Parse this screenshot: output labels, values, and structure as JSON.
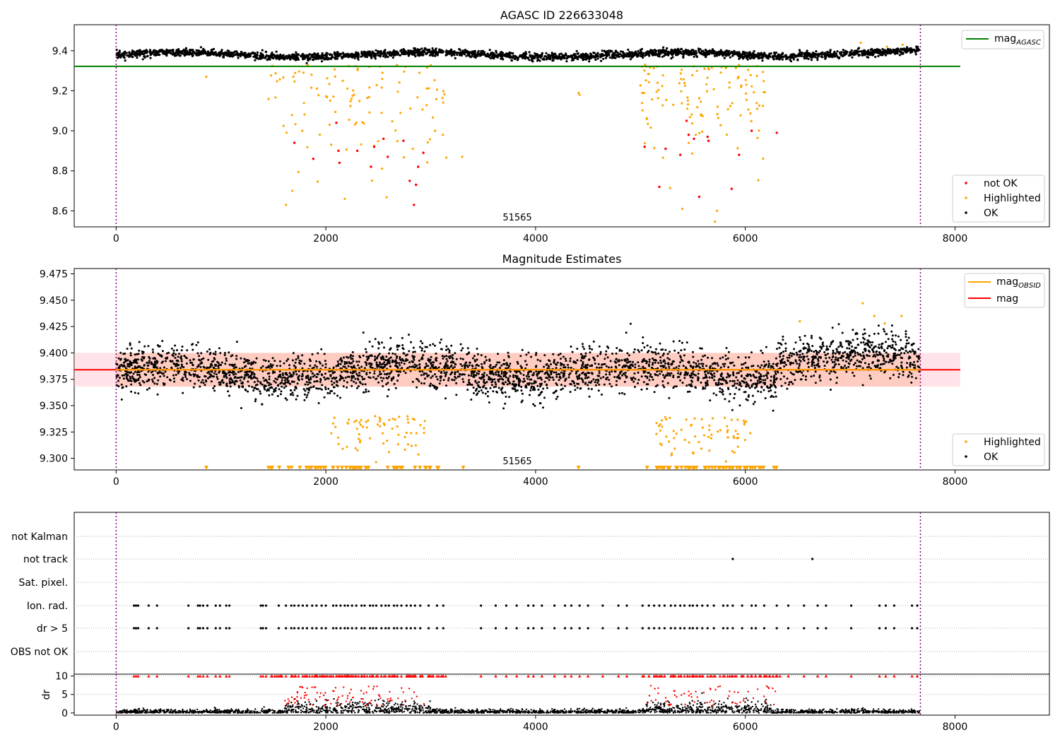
{
  "chart_data": [
    {
      "type": "scatter",
      "title": "AGASC ID 226633048",
      "xlabel": "",
      "ylabel": "",
      "xlim": [
        -400,
        8900
      ],
      "ylim": [
        8.52,
        9.53
      ],
      "xticks": [
        0,
        2000,
        4000,
        6000,
        8000
      ],
      "yticks": [
        8.6,
        8.8,
        9.0,
        9.2,
        9.4
      ],
      "yticklabels": [
        "8.6",
        "8.8",
        "9.0",
        "9.2",
        "9.4"
      ],
      "obsid_label": "51565",
      "obsid_boundaries": [
        0,
        7670
      ],
      "baseline": 9.4,
      "band_halfwidth": 0.02,
      "lines": [
        {
          "name": "mag_AGASC",
          "legend": "mag",
          "legend_sub": "AGASC",
          "y": 9.322,
          "x": [
            -400,
            8050
          ],
          "color": "#008000"
        }
      ],
      "series": [
        {
          "name": "not OK",
          "color": "#ff0000",
          "points": [
            [
              1700,
              8.94
            ],
            [
              1880,
              8.86
            ],
            [
              2100,
              9.04
            ],
            [
              2130,
              8.84
            ],
            [
              2120,
              8.9
            ],
            [
              2300,
              8.9
            ],
            [
              2430,
              8.82
            ],
            [
              2460,
              8.92
            ],
            [
              2550,
              8.96
            ],
            [
              2590,
              8.87
            ],
            [
              2740,
              8.95
            ],
            [
              2800,
              8.75
            ],
            [
              2840,
              8.63
            ],
            [
              2860,
              8.73
            ],
            [
              2880,
              8.82
            ],
            [
              2930,
              8.89
            ],
            [
              5040,
              8.92
            ],
            [
              5180,
              8.72
            ],
            [
              5240,
              8.91
            ],
            [
              5380,
              8.88
            ],
            [
              5440,
              9.05
            ],
            [
              5460,
              8.98
            ],
            [
              5510,
              8.96
            ],
            [
              5560,
              8.67
            ],
            [
              5640,
              8.97
            ],
            [
              5650,
              8.95
            ],
            [
              5870,
              8.71
            ],
            [
              5940,
              8.88
            ],
            [
              6060,
              9.0
            ],
            [
              6300,
              8.99
            ]
          ]
        },
        {
          "name": "Highlighted",
          "color": "#ffa500",
          "groups": [
            [
              1450,
              3150,
              110
            ],
            [
              5000,
              6200,
              120
            ]
          ],
          "extra": [
            [
              860,
              9.27
            ],
            [
              1620,
              8.63
            ],
            [
              1680,
              8.7
            ],
            [
              2180,
              8.66
            ],
            [
              3300,
              8.87
            ],
            [
              4410,
              9.19
            ],
            [
              4420,
              9.18
            ],
            [
              5400,
              8.61
            ],
            [
              5730,
              8.6
            ],
            [
              7100,
              9.44
            ],
            [
              7350,
              9.42
            ],
            [
              7500,
              9.43
            ]
          ]
        },
        {
          "name": "OK",
          "color": "#000000",
          "xrange": [
            0,
            7660
          ],
          "count": 2600
        }
      ],
      "legend": {
        "placement": "lower-right",
        "entries": [
          "not OK",
          "Highlighted",
          "OK"
        ]
      }
    },
    {
      "type": "scatter",
      "title": "Magnitude Estimates",
      "xlabel": "",
      "ylabel": "",
      "xlim": [
        -400,
        8900
      ],
      "ylim": [
        9.289,
        9.48
      ],
      "xticks": [
        0,
        2000,
        4000,
        6000,
        8000
      ],
      "yticks": [
        9.3,
        9.325,
        9.35,
        9.375,
        9.4,
        9.425,
        9.45,
        9.475
      ],
      "yticklabels": [
        "9.300",
        "9.325",
        "9.350",
        "9.375",
        "9.400",
        "9.425",
        "9.450",
        "9.475"
      ],
      "obsid_label": "51565",
      "obsid_boundaries": [
        0,
        7670
      ],
      "lines": [
        {
          "name": "mag_OBSID",
          "legend": "mag",
          "legend_sub": "OBSID",
          "y": 9.384,
          "x": [
            0,
            7670
          ],
          "color": "#ffa500"
        },
        {
          "name": "mag",
          "legend": "mag",
          "y": 9.384,
          "x": [
            -400,
            8050
          ],
          "color": "#ff0000"
        }
      ],
      "bands": [
        {
          "y": [
            9.368,
            9.4
          ],
          "x": [
            -400,
            8050
          ],
          "color": "#ffc0cb",
          "opacity": 0.45
        },
        {
          "y": [
            9.368,
            9.4
          ],
          "x": [
            0,
            7670
          ],
          "color": "#ffa07a",
          "opacity": 0.35
        }
      ],
      "series": [
        {
          "name": "Highlighted",
          "color": "#ffa500",
          "groups": [
            [
              2050,
              2950,
              70
            ],
            [
              5150,
              6050,
              70
            ]
          ],
          "floor_markers": {
            "y": 9.291,
            "ranges": [
              [
                1450,
                3100,
                55
              ],
              [
                5050,
                6300,
                60
              ]
            ],
            "extra": [
              860,
              4410,
              3310
            ]
          }
        },
        {
          "name": "OK",
          "color": "#000000",
          "xrange": [
            0,
            7660
          ],
          "count": 3200
        }
      ],
      "legend": {
        "placement": "lower-right",
        "entries": [
          "Highlighted",
          "OK"
        ]
      }
    },
    {
      "type": "scatter",
      "title": "",
      "xlabel": "",
      "ylabel": "",
      "xlim": [
        -400,
        8900
      ],
      "xticks": [
        0,
        2000,
        4000,
        6000,
        8000
      ],
      "categories": [
        "not Kalman",
        "not track",
        "Sat. pixel.",
        "Ion. rad.",
        "dr > 5",
        "OBS not OK"
      ],
      "obsid_boundaries": [
        0,
        7670
      ],
      "flag_points": {
        "not track": [
          5880,
          6640
        ],
        "Ion. rad.": [
          170,
          190,
          210,
          310,
          390,
          690,
          780,
          800,
          830,
          870,
          950,
          990,
          1050,
          1080,
          1380,
          1400,
          1430,
          1550,
          1620,
          1670,
          1700,
          1740,
          1780,
          1820,
          1870,
          1910,
          1960,
          2000,
          2070,
          2100,
          2140,
          2180,
          2210,
          2250,
          2290,
          2340,
          2370,
          2420,
          2450,
          2480,
          2530,
          2570,
          2600,
          2650,
          2680,
          2720,
          2770,
          2810,
          2850,
          2900,
          2980,
          3060,
          3120,
          3480,
          3620,
          3720,
          3820,
          3930,
          3980,
          4060,
          4180,
          4280,
          4340,
          4420,
          4500,
          4640,
          4790,
          4870,
          5020,
          5080,
          5130,
          5180,
          5230,
          5290,
          5330,
          5380,
          5420,
          5470,
          5500,
          5540,
          5590,
          5640,
          5700,
          5790,
          5830,
          5880,
          5970,
          6060,
          6100,
          6180,
          6300,
          6410,
          6560,
          6690,
          6770,
          7010,
          7280,
          7340,
          7420,
          7590,
          7640
        ],
        "dr > 5": [
          170,
          190,
          210,
          310,
          390,
          690,
          780,
          800,
          830,
          870,
          950,
          990,
          1050,
          1080,
          1380,
          1400,
          1430,
          1550,
          1620,
          1670,
          1700,
          1740,
          1780,
          1820,
          1870,
          1910,
          1960,
          2000,
          2070,
          2100,
          2140,
          2180,
          2210,
          2250,
          2290,
          2340,
          2370,
          2420,
          2450,
          2480,
          2530,
          2570,
          2600,
          2650,
          2680,
          2720,
          2770,
          2810,
          2850,
          2900,
          2980,
          3060,
          3120,
          3480,
          3620,
          3720,
          3820,
          3930,
          3980,
          4060,
          4180,
          4280,
          4340,
          4420,
          4500,
          4640,
          4790,
          4870,
          5020,
          5080,
          5130,
          5180,
          5230,
          5290,
          5330,
          5380,
          5420,
          5470,
          5500,
          5540,
          5590,
          5640,
          5700,
          5790,
          5830,
          5880,
          5970,
          6060,
          6100,
          6180,
          6300,
          6410,
          6560,
          6690,
          6770,
          7010,
          7280,
          7340,
          7420,
          7590,
          7640
        ]
      }
    },
    {
      "type": "scatter",
      "title": "",
      "xlabel": "",
      "ylabel": "dr",
      "xlim": [
        -400,
        8900
      ],
      "ylim": [
        -0.6,
        10.5
      ],
      "xticks": [
        0,
        2000,
        4000,
        6000,
        8000
      ],
      "xticklabels": [
        "0",
        "2000",
        "4000",
        "6000",
        "8000"
      ],
      "yticks": [
        0,
        5,
        10
      ],
      "yticklabels": [
        "0",
        "5",
        "10"
      ],
      "obsid_boundaries": [
        0,
        7670
      ],
      "series": [
        {
          "name": "dr",
          "color": "#000000",
          "xrange": [
            0,
            7660
          ],
          "count": 2400
        },
        {
          "name": "dr > 5 (clipped)",
          "color": "#ff0000",
          "marker": "triangle",
          "y": 10
        },
        {
          "name": "dr high",
          "color": "#ff0000",
          "groups": [
            [
              1600,
              2950,
              90
            ],
            [
              5050,
              6300,
              60
            ]
          ]
        }
      ]
    }
  ]
}
